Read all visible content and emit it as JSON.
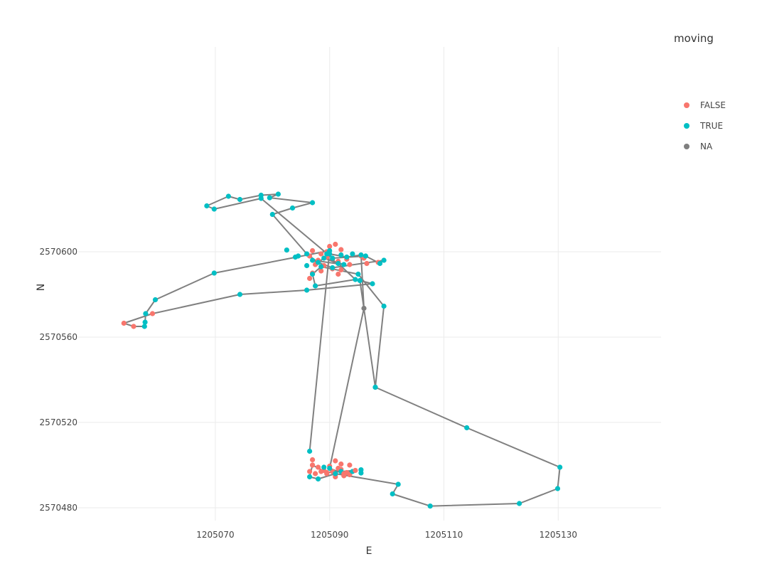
{
  "chart_data": {
    "type": "scatter",
    "mode": "lines+markers",
    "xlabel": "E",
    "ylabel": "N",
    "xlim": [
      1205046,
      1205148
    ],
    "ylim": [
      2570474,
      2570696
    ],
    "x_ticks": [
      "1205070",
      "1205090",
      "1205110",
      "1205130"
    ],
    "y_ticks": [
      "2570480",
      "2570520",
      "2570560",
      "2570600"
    ],
    "grid": true,
    "line_color": "#808080",
    "legend": {
      "title": "moving",
      "position": "right",
      "entries": [
        {
          "label": "FALSE",
          "color": "#F8766D"
        },
        {
          "label": "TRUE",
          "color": "#00BFC4"
        },
        {
          "label": "NA",
          "color": "#7F7F7F"
        }
      ]
    },
    "track": [
      [
        1205086.5,
        2570506.5,
        "TRUE"
      ],
      [
        1205090.0,
        2570600.5,
        "TRUE"
      ],
      [
        1205069.8,
        2570590.0,
        "TRUE"
      ],
      [
        1205059.5,
        2570577.5,
        "TRUE"
      ],
      [
        1205057.8,
        2570571.0,
        "TRUE"
      ],
      [
        1205057.7,
        2570567.0,
        "TRUE"
      ],
      [
        1205057.6,
        2570565.0,
        "TRUE"
      ],
      [
        1205055.7,
        2570565.0,
        "FALSE"
      ],
      [
        1205054.0,
        2570566.5,
        "FALSE"
      ],
      [
        1205059.0,
        2570571.0,
        "FALSE"
      ],
      [
        1205074.3,
        2570580.0,
        "TRUE"
      ],
      [
        1205086.0,
        2570582.0,
        "TRUE"
      ],
      [
        1205097.5,
        2570585.0,
        "TRUE"
      ],
      [
        1205095.3,
        2570586.5,
        "TRUE"
      ],
      [
        1205098.0,
        2570536.5,
        "TRUE"
      ],
      [
        1205114.0,
        2570517.5,
        "TRUE"
      ],
      [
        1205130.3,
        2570499.0,
        "TRUE"
      ],
      [
        1205129.9,
        2570489.0,
        "TRUE"
      ],
      [
        1205123.2,
        2570482.0,
        "TRUE"
      ],
      [
        1205107.6,
        2570480.8,
        "TRUE"
      ],
      [
        1205101.0,
        2570486.5,
        "TRUE"
      ],
      [
        1205102.0,
        2570491.0,
        "TRUE"
      ],
      [
        1205091.0,
        2570496.0,
        "TRUE"
      ],
      [
        1205088.0,
        2570493.5,
        "TRUE"
      ],
      [
        1205086.5,
        2570494.5,
        "TRUE"
      ],
      [
        1205087.0,
        2570500.0,
        "FALSE"
      ],
      [
        1205089.5,
        2570496.5,
        "FALSE"
      ],
      [
        1205094.5,
        2570497.5,
        "FALSE"
      ],
      [
        1205092.5,
        2570496.0,
        "FALSE"
      ],
      [
        1205090.0,
        2570498.5,
        "TRUE"
      ],
      [
        1205096.0,
        2570573.5,
        "NA"
      ],
      [
        1205095.5,
        2570598.5,
        "TRUE"
      ],
      [
        1205093.0,
        2570597.5,
        "TRUE"
      ],
      [
        1205090.0,
        2570599.0,
        "TRUE"
      ],
      [
        1205088.0,
        2570595.0,
        "TRUE"
      ],
      [
        1205086.0,
        2570599.0,
        "TRUE"
      ],
      [
        1205080.0,
        2570617.5,
        "TRUE"
      ],
      [
        1205083.5,
        2570620.5,
        "TRUE"
      ],
      [
        1205087.0,
        2570623.0,
        "TRUE"
      ],
      [
        1205079.5,
        2570625.3,
        "TRUE"
      ],
      [
        1205081.0,
        2570627.0,
        "TRUE"
      ],
      [
        1205078.0,
        2570626.5,
        "TRUE"
      ],
      [
        1205074.3,
        2570624.5,
        "TRUE"
      ],
      [
        1205072.3,
        2570626.0,
        "TRUE"
      ],
      [
        1205068.5,
        2570621.5,
        "TRUE"
      ],
      [
        1205069.8,
        2570620.0,
        "TRUE"
      ],
      [
        1205078.0,
        2570625.0,
        "TRUE"
      ],
      [
        1205090.5,
        2570597.0,
        "TRUE"
      ],
      [
        1205096.3,
        2570598.0,
        "TRUE"
      ],
      [
        1205098.8,
        2570594.5,
        "TRUE"
      ],
      [
        1205099.5,
        2570596.0,
        "TRUE"
      ],
      [
        1205090.5,
        2570592.5,
        "TRUE"
      ],
      [
        1205087.0,
        2570596.0,
        "TRUE"
      ],
      [
        1205092.5,
        2570594.0,
        "TRUE"
      ],
      [
        1205089.0,
        2570597.0,
        "TRUE"
      ],
      [
        1205091.5,
        2570594.5,
        "TRUE"
      ],
      [
        1205094.5,
        2570587.0,
        "TRUE"
      ],
      [
        1205087.5,
        2570584.0,
        "TRUE"
      ],
      [
        1205087.0,
        2570589.5,
        "TRUE"
      ],
      [
        1205088.5,
        2570593.0,
        "TRUE"
      ],
      [
        1205095.0,
        2570589.5,
        "TRUE"
      ],
      [
        1205099.5,
        2570574.5,
        "TRUE"
      ],
      [
        1205098.0,
        2570536.5,
        "TRUE"
      ]
    ],
    "points": [
      [
        1205087.0,
        2570600.5,
        "FALSE"
      ],
      [
        1205088.5,
        2570599.0,
        "FALSE"
      ],
      [
        1205090.0,
        2570602.5,
        "FALSE"
      ],
      [
        1205091.0,
        2570603.5,
        "FALSE"
      ],
      [
        1205092.0,
        2570601.0,
        "FALSE"
      ],
      [
        1205089.5,
        2570597.5,
        "FALSE"
      ],
      [
        1205088.0,
        2570596.0,
        "FALSE"
      ],
      [
        1205087.5,
        2570594.0,
        "FALSE"
      ],
      [
        1205089.0,
        2570593.5,
        "FALSE"
      ],
      [
        1205091.5,
        2570595.5,
        "FALSE"
      ],
      [
        1205093.5,
        2570594.0,
        "FALSE"
      ],
      [
        1205090.5,
        2570592.0,
        "FALSE"
      ],
      [
        1205088.5,
        2570591.0,
        "FALSE"
      ],
      [
        1205087.0,
        2570590.0,
        "FALSE"
      ],
      [
        1205092.0,
        2570591.5,
        "FALSE"
      ],
      [
        1205086.5,
        2570587.5,
        "FALSE"
      ],
      [
        1205091.5,
        2570589.5,
        "FALSE"
      ],
      [
        1205096.5,
        2570594.5,
        "FALSE"
      ],
      [
        1205098.5,
        2570595.0,
        "FALSE"
      ],
      [
        1205095.5,
        2570598.0,
        "FALSE"
      ],
      [
        1205086.5,
        2570598.0,
        "FALSE"
      ],
      [
        1205089.5,
        2570600.0,
        "FALSE"
      ],
      [
        1205093.0,
        2570596.5,
        "FALSE"
      ],
      [
        1205096.0,
        2570597.0,
        "FALSE"
      ],
      [
        1205090.5,
        2570596.5,
        "NA"
      ],
      [
        1205082.5,
        2570600.8,
        "TRUE"
      ],
      [
        1205084.5,
        2570598.0,
        "TRUE"
      ],
      [
        1205086.0,
        2570593.5,
        "TRUE"
      ],
      [
        1205089.5,
        2570599.0,
        "TRUE"
      ],
      [
        1205092.0,
        2570598.5,
        "TRUE"
      ],
      [
        1205094.0,
        2570599.0,
        "TRUE"
      ],
      [
        1205084.0,
        2570597.5,
        "TRUE"
      ],
      [
        1205087.0,
        2570502.5,
        "FALSE"
      ],
      [
        1205087.0,
        2570500.0,
        "FALSE"
      ],
      [
        1205088.0,
        2570499.0,
        "FALSE"
      ],
      [
        1205089.0,
        2570497.5,
        "FALSE"
      ],
      [
        1205090.0,
        2570499.5,
        "FALSE"
      ],
      [
        1205091.0,
        2570502.0,
        "FALSE"
      ],
      [
        1205092.0,
        2570500.5,
        "FALSE"
      ],
      [
        1205093.5,
        2570500.0,
        "FALSE"
      ],
      [
        1205087.5,
        2570496.0,
        "FALSE"
      ],
      [
        1205088.5,
        2570497.0,
        "FALSE"
      ],
      [
        1205090.5,
        2570497.0,
        "FALSE"
      ],
      [
        1205091.5,
        2570498.5,
        "FALSE"
      ],
      [
        1205093.0,
        2570496.5,
        "FALSE"
      ],
      [
        1205091.0,
        2570495.5,
        "FALSE"
      ],
      [
        1205091.0,
        2570494.5,
        "FALSE"
      ],
      [
        1205092.5,
        2570495.0,
        "FALSE"
      ],
      [
        1205089.5,
        2570496.0,
        "FALSE"
      ],
      [
        1205086.5,
        2570497.0,
        "FALSE"
      ],
      [
        1205093.5,
        2570495.5,
        "FALSE"
      ],
      [
        1205092.0,
        2570498.0,
        "FALSE"
      ],
      [
        1205092.0,
        2570497.0,
        "TRUE"
      ],
      [
        1205094.0,
        2570497.0,
        "TRUE"
      ],
      [
        1205095.5,
        2570497.8,
        "TRUE"
      ],
      [
        1205095.5,
        2570496.3,
        "TRUE"
      ],
      [
        1205089.0,
        2570499.0,
        "TRUE"
      ]
    ]
  }
}
